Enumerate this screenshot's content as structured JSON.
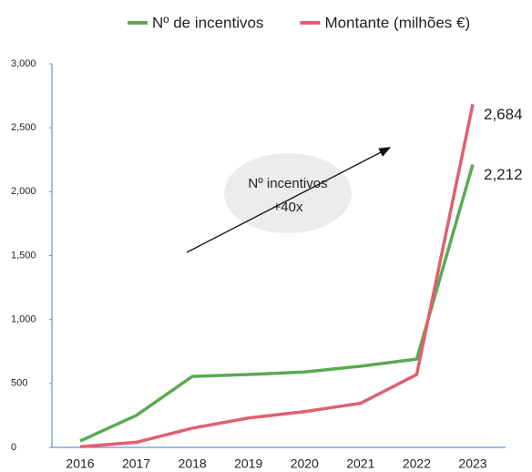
{
  "chart_data": {
    "type": "line",
    "categories": [
      "2016",
      "2017",
      "2018",
      "2019",
      "2020",
      "2021",
      "2022",
      "2023"
    ],
    "series": [
      {
        "name": "Nº de incentivos",
        "color": "#5aaa54",
        "values": [
          50,
          250,
          555,
          570,
          590,
          635,
          690,
          2212
        ],
        "value_labels": [
          null,
          null,
          null,
          null,
          null,
          null,
          null,
          "2,212"
        ]
      },
      {
        "name": "Montante (milhões €)",
        "color": "#e0606e",
        "values": [
          5,
          40,
          150,
          230,
          280,
          345,
          570,
          2684
        ],
        "value_labels": [
          null,
          null,
          null,
          null,
          null,
          null,
          null,
          "2,684"
        ]
      }
    ],
    "ylim": [
      0,
      3000
    ],
    "yticks": [
      0,
      500,
      {
        "value": 1000,
        "label": "1,000"
      },
      {
        "value": 1500,
        "label": "1,500"
      },
      {
        "value": 2000,
        "label": "2,000"
      },
      {
        "value": 2500,
        "label": "2,500"
      },
      {
        "value": 3000,
        "label": "3,000"
      }
    ],
    "grid": false,
    "legend": "top",
    "annotation": [
      "Nº incentivos",
      "+40x"
    ]
  }
}
